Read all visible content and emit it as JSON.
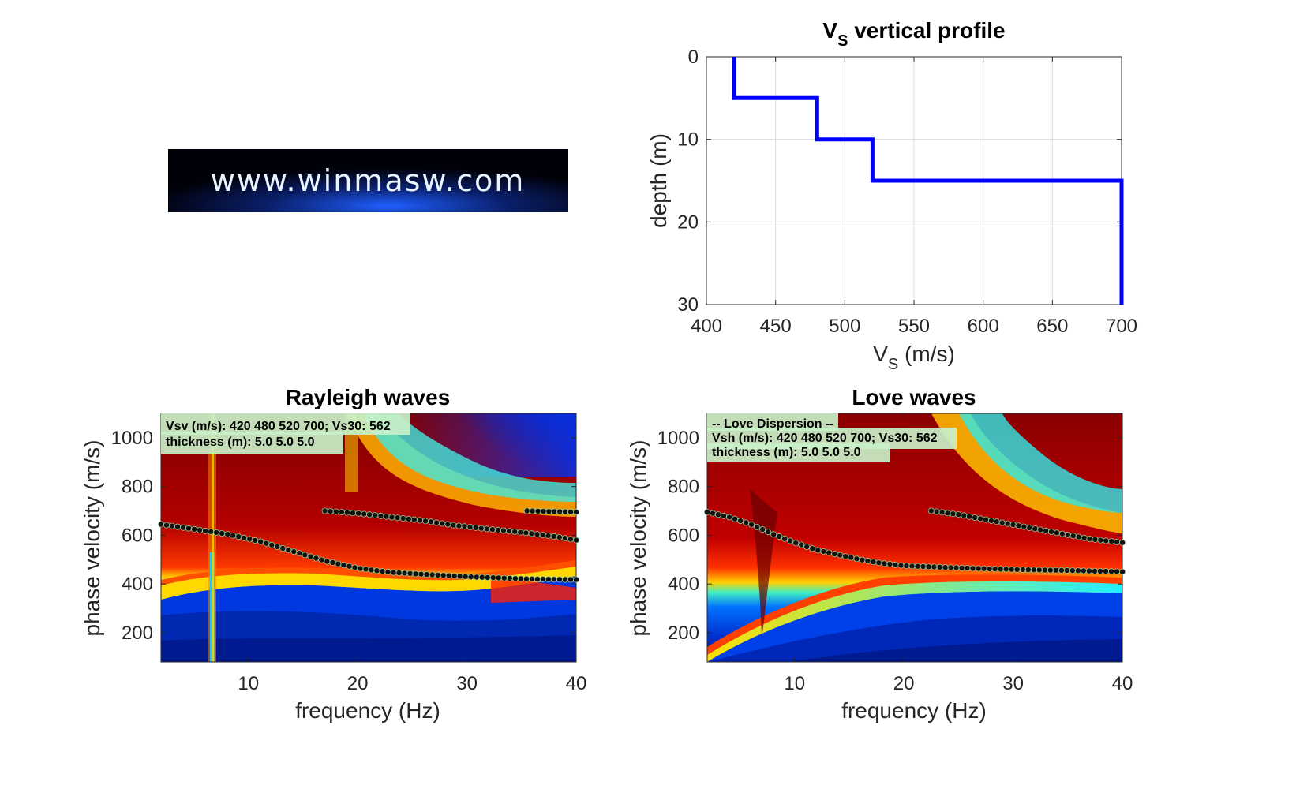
{
  "logo": {
    "text": "www.winmasw.com"
  },
  "chart_data": [
    {
      "type": "line",
      "title": "V",
      "title_sub": "S",
      "title_rest": " vertical profile",
      "xlabel": "V",
      "xlabel_sub": "S",
      "xlabel_rest": " (m/s)",
      "ylabel": "depth (m)",
      "xlim": [
        400,
        700
      ],
      "ylim": [
        0,
        30
      ],
      "y_reversed": true,
      "grid": true,
      "xticks": [
        "400",
        "450",
        "500",
        "550",
        "600",
        "650",
        "700"
      ],
      "yticks": [
        "0",
        "10",
        "20",
        "30"
      ],
      "line_color": "#0000ff",
      "x": [
        420,
        420,
        480,
        480,
        520,
        520,
        700,
        700
      ],
      "y": [
        0,
        5,
        5,
        10,
        10,
        15,
        15,
        30
      ]
    },
    {
      "type": "heatmap",
      "title": "Rayleigh waves",
      "xlabel": "frequency (Hz)",
      "ylabel": "phase velocity (m/s)",
      "xlim": [
        2,
        40
      ],
      "ylim": [
        80,
        1100
      ],
      "xticks": [
        "10",
        "20",
        "30",
        "40"
      ],
      "yticks": [
        "200",
        "400",
        "600",
        "800",
        "1000"
      ],
      "colormap": "jet",
      "annotation": [
        "Vsv (m/s): 420  480  520  700; Vs30: 562",
        "thickness (m): 5.0     5.0     5.0"
      ],
      "curves": [
        {
          "x": [
            2,
            5,
            8,
            11,
            14,
            17,
            20,
            23,
            26,
            30,
            33,
            36,
            40
          ],
          "y": [
            645,
            625,
            605,
            575,
            535,
            495,
            465,
            448,
            440,
            430,
            425,
            420,
            418
          ]
        },
        {
          "x": [
            17,
            20,
            23,
            26,
            29,
            32,
            35,
            38,
            40
          ],
          "y": [
            700,
            690,
            675,
            660,
            640,
            625,
            612,
            595,
            580
          ]
        },
        {
          "x": [
            35.5,
            37,
            38.5,
            40
          ],
          "y": [
            700,
            698,
            697,
            695
          ]
        }
      ]
    },
    {
      "type": "heatmap",
      "title": "Love waves",
      "xlabel": "frequency (Hz)",
      "ylabel": "phase velocity (m/s)",
      "xlim": [
        2,
        40
      ],
      "ylim": [
        80,
        1100
      ],
      "xticks": [
        "10",
        "20",
        "30",
        "40"
      ],
      "yticks": [
        "200",
        "400",
        "600",
        "800",
        "1000"
      ],
      "colormap": "jet",
      "annotation": [
        "-- Love Dispersion --",
        "Vsh (m/s): 420  480  520  700; Vs30: 562",
        "thickness (m): 5.0     5.0     5.0"
      ],
      "curves": [
        {
          "x": [
            2,
            4,
            6,
            8,
            10,
            12,
            14,
            16,
            18,
            20,
            24,
            28,
            32,
            36,
            40
          ],
          "y": [
            695,
            675,
            645,
            605,
            570,
            540,
            520,
            500,
            485,
            475,
            468,
            462,
            458,
            455,
            450
          ]
        },
        {
          "x": [
            22.5,
            25,
            28,
            31,
            34,
            37,
            40
          ],
          "y": [
            700,
            685,
            660,
            635,
            610,
            585,
            570
          ]
        }
      ]
    }
  ]
}
